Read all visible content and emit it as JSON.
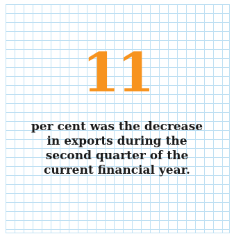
{
  "stat": {
    "value": "11",
    "caption_lines": [
      "per cent was the decrease",
      "in exports during the",
      "second quarter of the",
      "current financial year."
    ]
  },
  "colors": {
    "number": "#f7931e",
    "grid": "#bfe0f3",
    "text": "#1a1a1a",
    "background": "#ffffff"
  }
}
